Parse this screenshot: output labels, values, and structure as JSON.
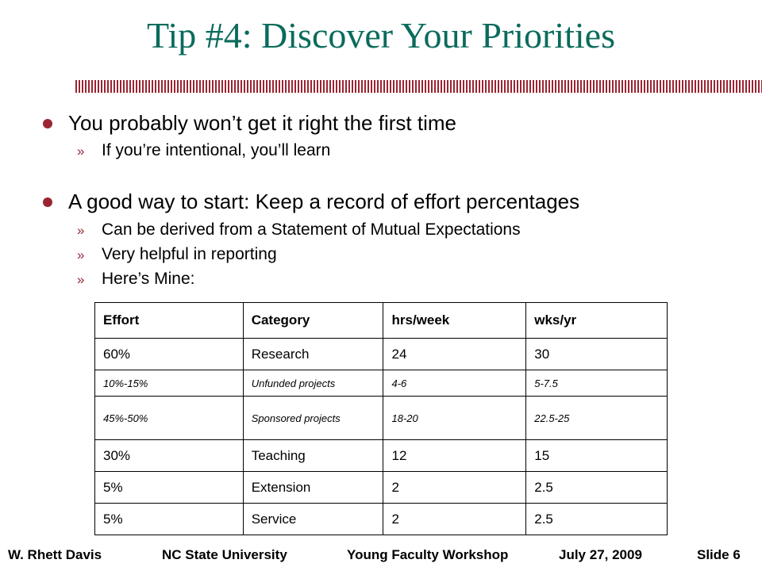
{
  "slide": {
    "title": "Tip #4: Discover Your Priorities",
    "colors": {
      "title": "#0a6b5c",
      "accent": "#9b2432"
    }
  },
  "bullets": [
    {
      "text": "You probably won’t get it right the first time",
      "subs": [
        "If you’re intentional, you’ll learn"
      ]
    },
    {
      "text": "A good way to start: Keep a record of effort percentages",
      "subs": [
        "Can be derived from a Statement of Mutual Expectations",
        "Very helpful in reporting",
        "Here’s Mine:"
      ]
    }
  ],
  "sub_marker": "»",
  "table": {
    "headers": [
      "Effort",
      "Category",
      "hrs/week",
      "wks/yr"
    ],
    "rows": [
      [
        "60%",
        "Research",
        "24",
        "30"
      ],
      [
        "10%-15%",
        "Unfunded projects",
        "4-6",
        "5-7.5"
      ],
      [
        "45%-50%",
        "Sponsored projects",
        "18-20",
        "22.5-25"
      ],
      [
        "30%",
        "Teaching",
        "12",
        "15"
      ],
      [
        "5%",
        "Extension",
        "2",
        "2.5"
      ],
      [
        "5%",
        "Service",
        "2",
        "2.5"
      ]
    ]
  },
  "footer": {
    "author": "W. Rhett Davis",
    "university": "NC State University",
    "event": "Young Faculty Workshop",
    "date": "July 27, 2009",
    "slide_number": "Slide 6"
  }
}
